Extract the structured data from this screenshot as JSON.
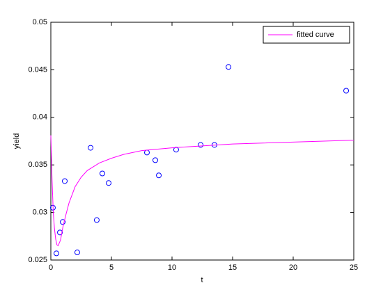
{
  "chart_data": {
    "type": "scatter",
    "xlabel": "t",
    "ylabel": "yield",
    "xlim": [
      0,
      25
    ],
    "ylim": [
      0.025,
      0.05
    ],
    "xticks": [
      0,
      5,
      10,
      15,
      20,
      25
    ],
    "yticks": [
      0.025,
      0.03,
      0.035,
      0.04,
      0.045,
      0.05
    ],
    "grid": false,
    "legend": "upper right",
    "series": [
      {
        "type": "scatter",
        "color": "#0000ff",
        "x": [
          0.17,
          0.46,
          0.75,
          0.98,
          1.15,
          2.18,
          3.28,
          3.79,
          4.25,
          4.77,
          7.93,
          8.62,
          8.91,
          10.34,
          12.36,
          13.5,
          14.66,
          24.37
        ],
        "values": [
          0.0305,
          0.0257,
          0.0279,
          0.029,
          0.0333,
          0.0258,
          0.0368,
          0.0292,
          0.0341,
          0.0331,
          0.0363,
          0.0355,
          0.0339,
          0.0366,
          0.0371,
          0.0371,
          0.0453,
          0.0428
        ]
      },
      {
        "type": "line",
        "name": "fitted curve",
        "color": "#ff00ff",
        "x": [
          0,
          0.1,
          0.2,
          0.3,
          0.4,
          0.5,
          0.6,
          0.8,
          1,
          1.25,
          1.5,
          2,
          2.5,
          3,
          4,
          5,
          6,
          7.5,
          10,
          12.5,
          15,
          17.5,
          20,
          22.5,
          25
        ],
        "values": [
          0.0381,
          0.0335,
          0.03,
          0.0283,
          0.0272,
          0.0266,
          0.0265,
          0.0271,
          0.0285,
          0.0298,
          0.031,
          0.0327,
          0.0337,
          0.0344,
          0.0352,
          0.0357,
          0.0361,
          0.0365,
          0.0368,
          0.037,
          0.0372,
          0.0373,
          0.0374,
          0.0375,
          0.0376
        ]
      }
    ]
  }
}
